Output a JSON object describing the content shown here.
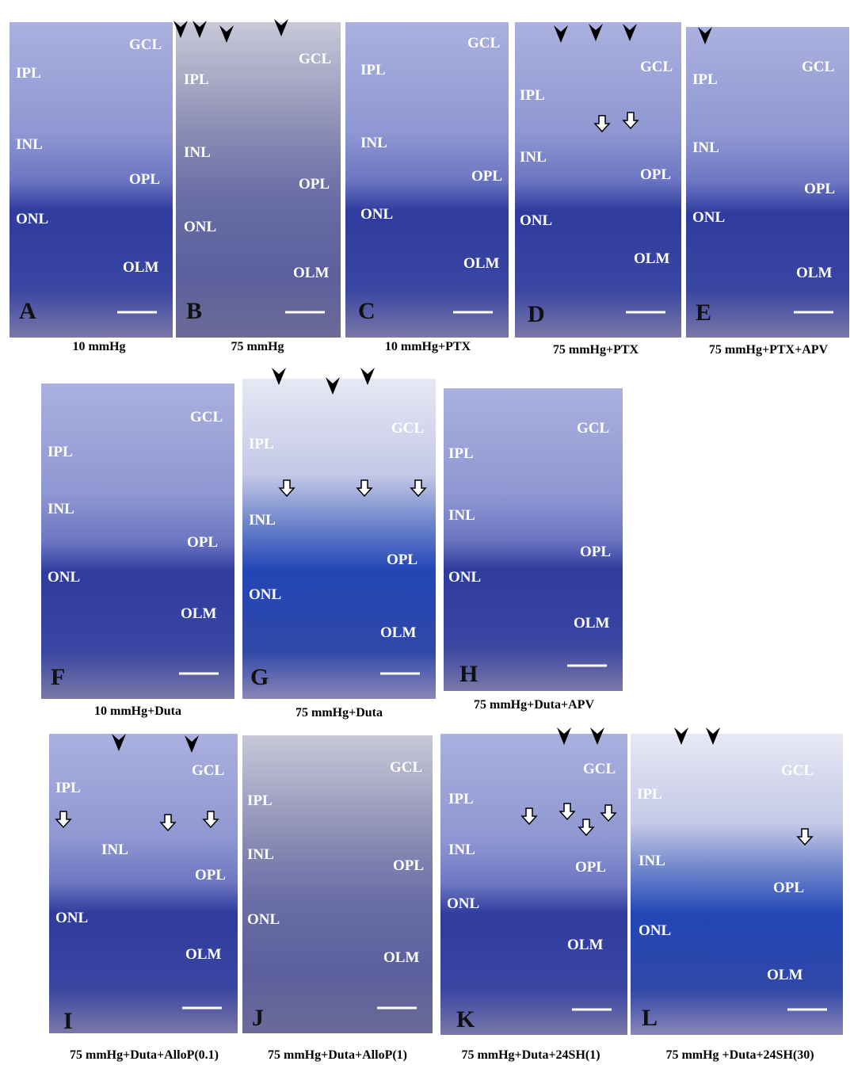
{
  "panels": [
    {
      "letter": "A",
      "caption": "10 mmHg",
      "labels": [
        "GCL",
        "IPL",
        "INL",
        "OPL",
        "ONL",
        "OLM"
      ]
    },
    {
      "letter": "B",
      "caption": "75 mmHg",
      "labels": [
        "GCL",
        "IPL",
        "INL",
        "OPL",
        "ONL",
        "OLM"
      ]
    },
    {
      "letter": "C",
      "caption": "10 mmHg+PTX",
      "labels": [
        "GCL",
        "IPL",
        "INL",
        "OPL",
        "ONL",
        "OLM"
      ]
    },
    {
      "letter": "D",
      "caption": "75 mmHg+PTX",
      "labels": [
        "GCL",
        "IPL",
        "INL",
        "OPL",
        "ONL",
        "OLM"
      ]
    },
    {
      "letter": "E",
      "caption": "75 mmHg+PTX+APV",
      "labels": [
        "GCL",
        "IPL",
        "INL",
        "OPL",
        "ONL",
        "OLM"
      ]
    },
    {
      "letter": "F",
      "caption": "10 mmHg+Duta",
      "labels": [
        "GCL",
        "IPL",
        "INL",
        "OPL",
        "ONL",
        "OLM"
      ]
    },
    {
      "letter": "G",
      "caption": "75 mmHg+Duta",
      "labels": [
        "GCL",
        "IPL",
        "INL",
        "OPL",
        "ONL",
        "OLM"
      ]
    },
    {
      "letter": "H",
      "caption": "75 mmHg+Duta+APV",
      "labels": [
        "GCL",
        "IPL",
        "INL",
        "OPL",
        "ONL",
        "OLM"
      ]
    },
    {
      "letter": "I",
      "caption": "75 mmHg+Duta+AlloP(0.1)",
      "labels": [
        "GCL",
        "IPL",
        "INL",
        "OPL",
        "ONL",
        "OLM"
      ]
    },
    {
      "letter": "J",
      "caption": "75 mmHg+Duta+AlloP(1)",
      "labels": [
        "GCL",
        "IPL",
        "INL",
        "OPL",
        "ONL",
        "OLM"
      ]
    },
    {
      "letter": "K",
      "caption": "75 mmHg+Duta+24SH(1)",
      "labels": [
        "GCL",
        "IPL",
        "INL",
        "OPL",
        "ONL",
        "OLM"
      ]
    },
    {
      "letter": "L",
      "caption": "75 mmHg +Duta+24SH(30)",
      "labels": [
        "GCL",
        "IPL",
        "INL",
        "OPL",
        "ONL",
        "OLM"
      ]
    }
  ]
}
